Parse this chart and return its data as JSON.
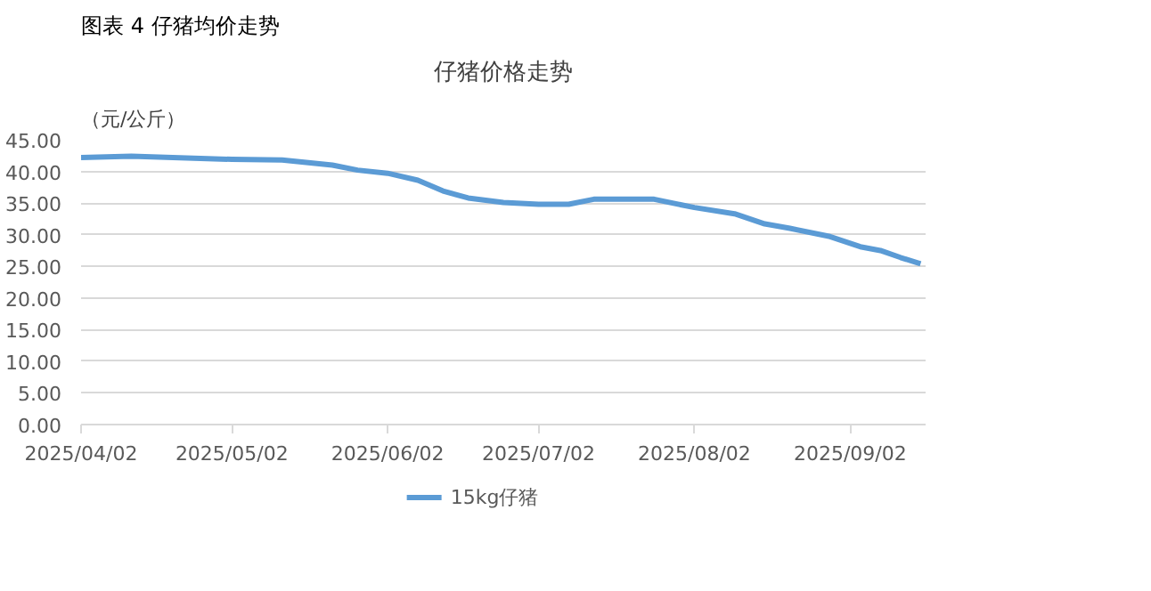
{
  "chart_data": {
    "type": "line",
    "title": "仔猪价格走势",
    "ylabel": "（元/公斤）",
    "annotations": [
      "图表 4 仔猪均价走势"
    ],
    "xlim": [
      "2025-04-02",
      "2025-09-17"
    ],
    "xticks": [
      {
        "value": "2025-04-02",
        "label": "2025/04/02"
      },
      {
        "value": "2025-05-02",
        "label": "2025/05/02"
      },
      {
        "value": "2025-06-02",
        "label": "2025/06/02"
      },
      {
        "value": "2025-07-02",
        "label": "2025/07/02"
      },
      {
        "value": "2025-08-02",
        "label": "2025/08/02"
      },
      {
        "value": "2025-09-02",
        "label": "2025/09/02"
      }
    ],
    "ylim": [
      0,
      45
    ],
    "yticks": [
      {
        "value": 0,
        "label": "0.00"
      },
      {
        "value": 5,
        "label": "5.00"
      },
      {
        "value": 10,
        "label": "10.00"
      },
      {
        "value": 15,
        "label": "15.00"
      },
      {
        "value": 20,
        "label": "20.00"
      },
      {
        "value": 25,
        "label": "25.00"
      },
      {
        "value": 30,
        "label": "30.00"
      },
      {
        "value": 35,
        "label": "35.00"
      },
      {
        "value": 40,
        "label": "40.00"
      },
      {
        "value": 45,
        "label": "45.00"
      }
    ],
    "grid": "y",
    "legend": "bottom",
    "marker": "none",
    "line_style": "solid",
    "x": [
      "2025-04-02",
      "2025-04-12",
      "2025-05-02",
      "2025-05-12",
      "2025-05-22",
      "2025-05-27",
      "2025-06-02",
      "2025-06-08",
      "2025-06-13",
      "2025-06-18",
      "2025-06-25",
      "2025-07-02",
      "2025-07-08",
      "2025-07-13",
      "2025-07-25",
      "2025-07-28",
      "2025-08-02",
      "2025-08-10",
      "2025-08-16",
      "2025-08-21",
      "2025-08-29",
      "2025-09-04",
      "2025-09-08",
      "2025-09-12",
      "2025-09-16"
    ],
    "series": [
      {
        "name": "15kg仔猪",
        "color": "#5b9bd5",
        "values": [
          42.2,
          42.4,
          41.9,
          41.8,
          41.0,
          40.2,
          39.7,
          38.6,
          36.9,
          35.8,
          35.1,
          34.8,
          34.8,
          35.6,
          35.6,
          35.1,
          34.3,
          33.3,
          31.7,
          31.0,
          29.7,
          28.1,
          27.5,
          26.4,
          25.4
        ]
      }
    ]
  }
}
